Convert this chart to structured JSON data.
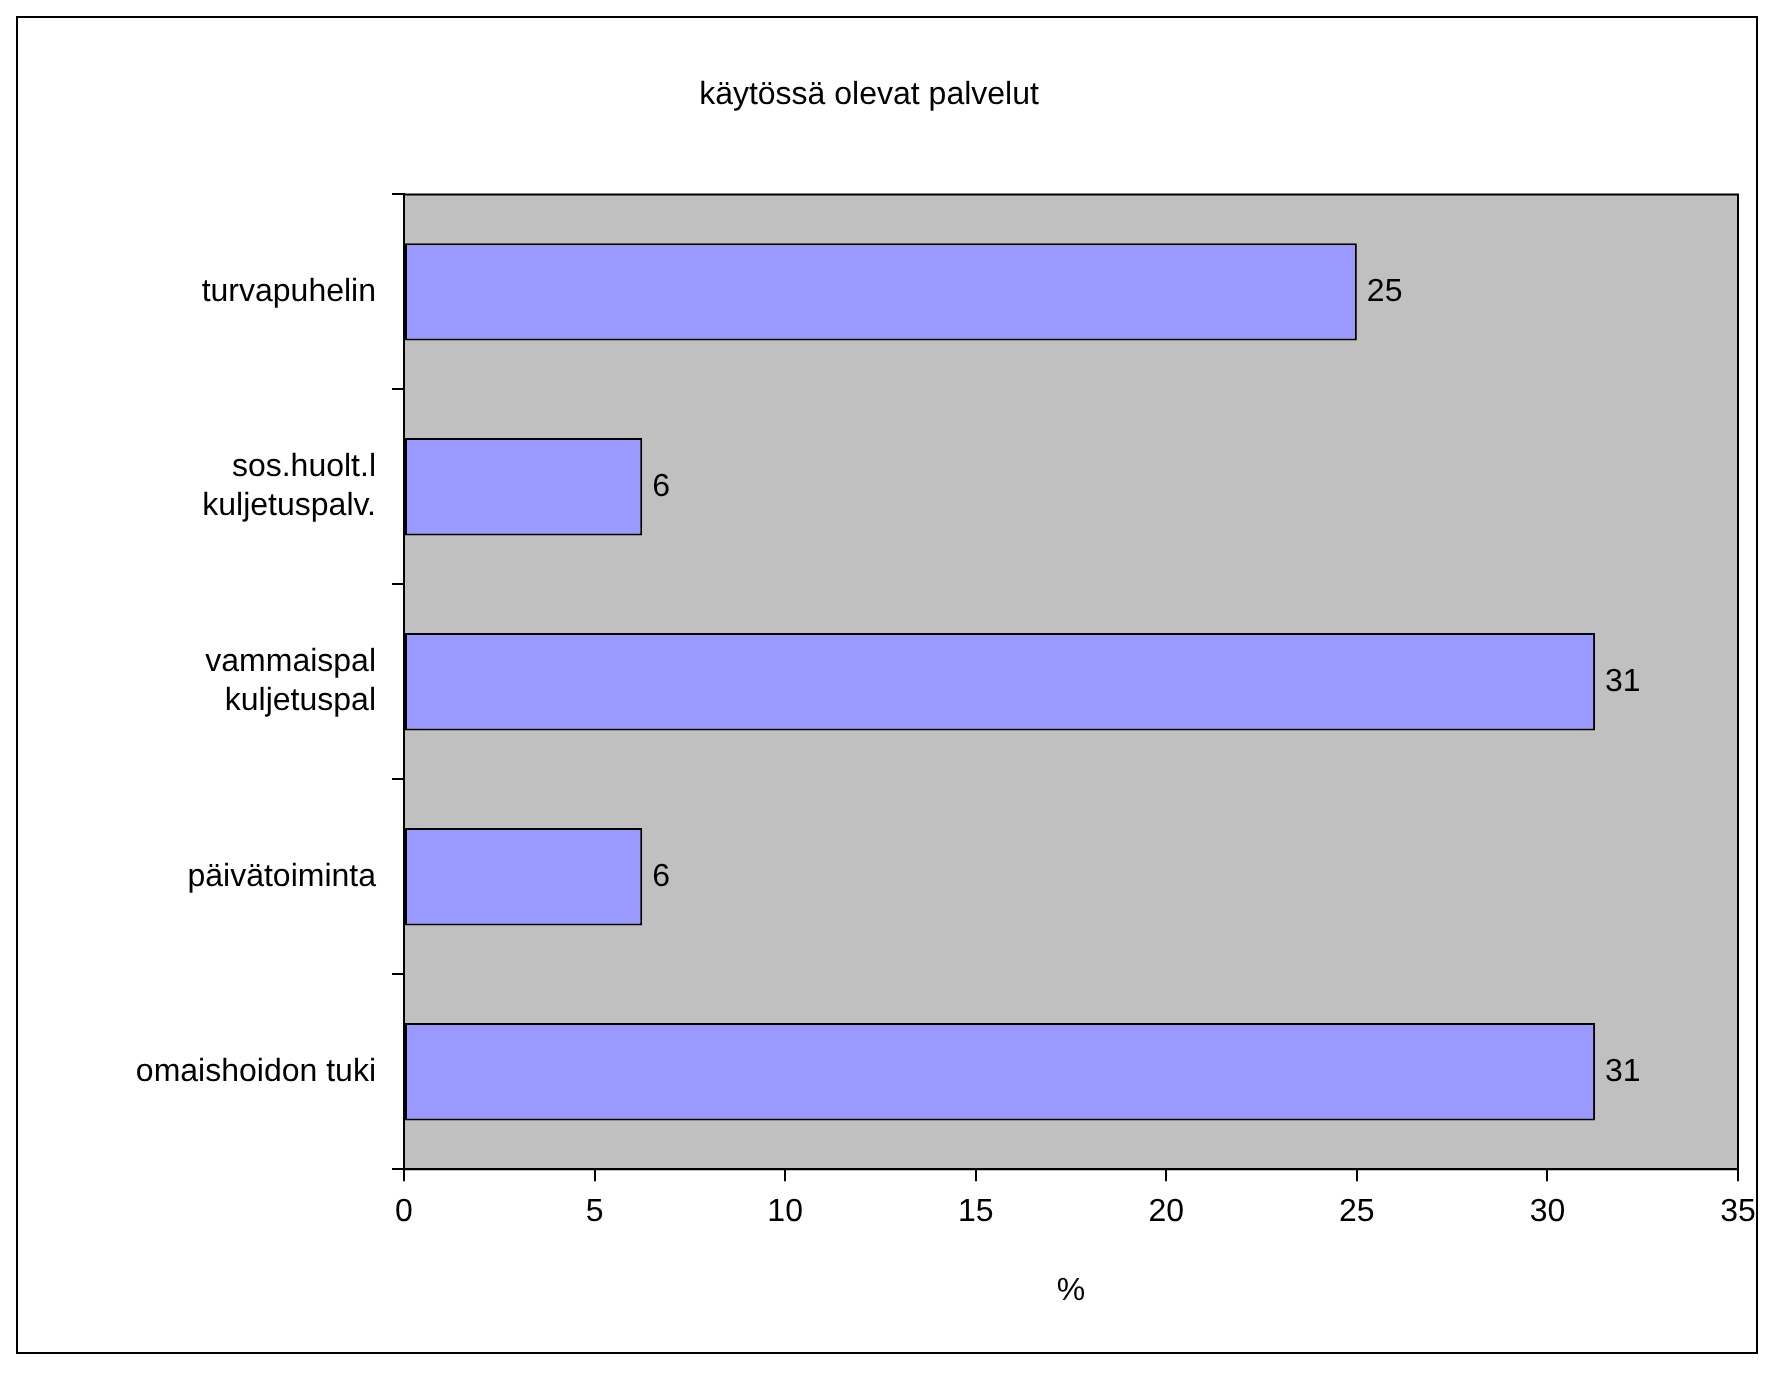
{
  "chart_data": {
    "type": "bar",
    "orientation": "horizontal",
    "title": "käytössä olevat palvelut",
    "xlabel": "%",
    "categories": [
      "turvapuhelin",
      "sos.huolt.l\nkuljetuspalv.",
      "vammaispal\nkuljetuspal",
      "päivätoiminta",
      "omaishoidon tuki"
    ],
    "values": [
      25,
      6.25,
      31.25,
      6.25,
      31.25
    ],
    "value_labels": [
      "25",
      "6",
      "31",
      "6",
      "31"
    ],
    "color": "#9999ff",
    "xlim": [
      0,
      35
    ],
    "xticks": [
      0,
      5,
      10,
      15,
      20,
      25,
      30,
      35
    ],
    "grid": false,
    "legend": false
  }
}
